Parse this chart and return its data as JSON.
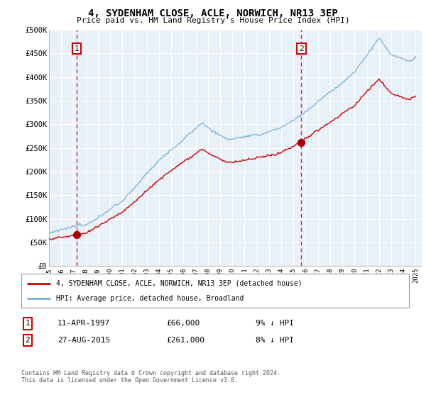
{
  "title": "4, SYDENHAM CLOSE, ACLE, NORWICH, NR13 3EP",
  "subtitle": "Price paid vs. HM Land Registry's House Price Index (HPI)",
  "ylabel_ticks": [
    "£0",
    "£50K",
    "£100K",
    "£150K",
    "£200K",
    "£250K",
    "£300K",
    "£350K",
    "£400K",
    "£450K",
    "£500K"
  ],
  "ytick_values": [
    0,
    50000,
    100000,
    150000,
    200000,
    250000,
    300000,
    350000,
    400000,
    450000,
    500000
  ],
  "ylim": [
    0,
    500000
  ],
  "xlim_start": 1995.0,
  "xlim_end": 2025.5,
  "sale1_year": 1997.28,
  "sale1_price": 66000,
  "sale2_year": 2015.65,
  "sale2_price": 261000,
  "hpi_color": "#7ab0d4",
  "sale_line_color": "#cc0000",
  "sale_dot_color": "#aa0000",
  "vline_color": "#dd0000",
  "plot_bg_color": "#e8f0f8",
  "fig_bg_color": "#ffffff",
  "grid_color": "#c8d4e0",
  "legend_label1": "4, SYDENHAM CLOSE, ACLE, NORWICH, NR13 3EP (detached house)",
  "legend_label2": "HPI: Average price, detached house, Broadland",
  "table_row1_num": "1",
  "table_row1_date": "11-APR-1997",
  "table_row1_price": "£66,000",
  "table_row1_hpi": "9% ↓ HPI",
  "table_row2_num": "2",
  "table_row2_date": "27-AUG-2015",
  "table_row2_price": "£261,000",
  "table_row2_hpi": "8% ↓ HPI",
  "footnote": "Contains HM Land Registry data © Crown copyright and database right 2024.\nThis data is licensed under the Open Government Licence v3.0.",
  "xtick_years": [
    1995,
    1996,
    1997,
    1998,
    1999,
    2000,
    2001,
    2002,
    2003,
    2004,
    2005,
    2006,
    2007,
    2008,
    2009,
    2010,
    2011,
    2012,
    2013,
    2014,
    2015,
    2016,
    2017,
    2018,
    2019,
    2020,
    2021,
    2022,
    2023,
    2024,
    2025
  ]
}
